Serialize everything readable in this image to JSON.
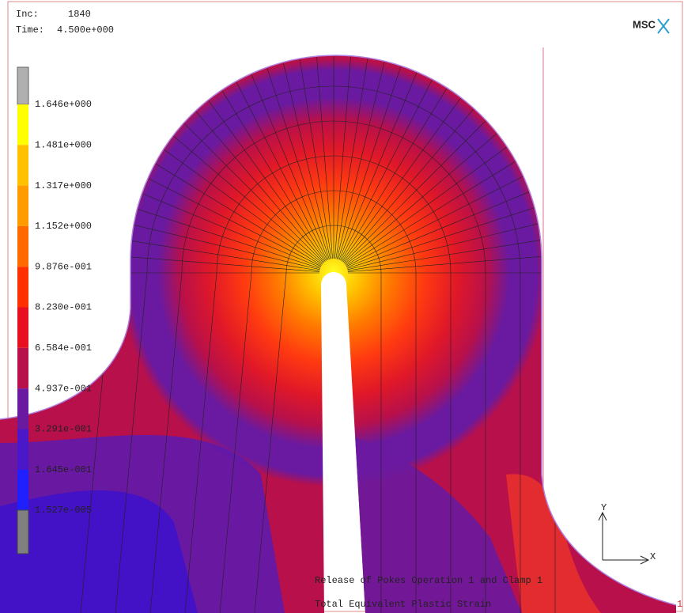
{
  "header": {
    "inc_label": "Inc:",
    "inc": "1840",
    "time_label": "Time:",
    "time": "4.500e+000",
    "logo": "MSC"
  },
  "legend": {
    "labels": [
      "1.646e+000",
      "1.481e+000",
      "1.317e+000",
      "1.152e+000",
      "9.876e-001",
      "8.230e-001",
      "6.584e-001",
      "4.937e-001",
      "3.291e-001",
      "1.645e-001",
      "1.527e-005"
    ]
  },
  "footer": {
    "subtitle": "Release of Pokes  Operation 1 and Clamp 1",
    "title": "Total Equivalent Plastic Strain"
  },
  "axes": {
    "y": "Y",
    "x": "X",
    "id": "1"
  }
}
